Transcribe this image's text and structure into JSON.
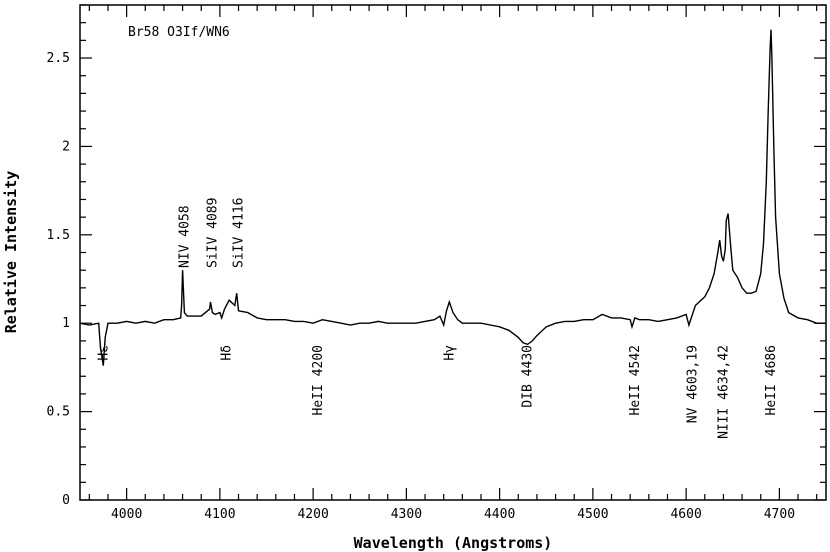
{
  "chart_data": {
    "type": "line",
    "title": "Br58 O3If/WN6",
    "xlabel": "Wavelength (Angstroms)",
    "ylabel": "Relative Intensity",
    "xlim": [
      3950,
      4750
    ],
    "ylim": [
      0,
      2.8
    ],
    "xticks": [
      "4000",
      "4100",
      "4200",
      "4300",
      "4400",
      "4500",
      "4600",
      "4700"
    ],
    "yticks": [
      "0",
      "0.5",
      "1",
      "1.5",
      "2",
      "2.5"
    ],
    "series": [
      {
        "x": [
          3950,
          3960,
          3970,
          3972,
          3975,
          3977,
          3980,
          3990,
          4000,
          4010,
          4020,
          4030,
          4040,
          4050,
          4058,
          4059,
          4060,
          4062,
          4065,
          4070,
          4080,
          4089,
          4090,
          4092,
          4095,
          4100,
          4102,
          4105,
          4110,
          4116,
          4118,
          4120,
          4130,
          4140,
          4150,
          4160,
          4170,
          4180,
          4190,
          4200,
          4210,
          4220,
          4230,
          4240,
          4250,
          4260,
          4270,
          4280,
          4290,
          4300,
          4310,
          4320,
          4330,
          4336,
          4340,
          4343,
          4346,
          4350,
          4355,
          4360,
          4370,
          4380,
          4390,
          4400,
          4410,
          4420,
          4425,
          4430,
          4435,
          4440,
          4450,
          4460,
          4470,
          4480,
          4490,
          4500,
          4510,
          4520,
          4530,
          4540,
          4542,
          4545,
          4550,
          4560,
          4570,
          4580,
          4590,
          4600,
          4603,
          4610,
          4620,
          4625,
          4630,
          4634,
          4636,
          4638,
          4640,
          4642,
          4643,
          4645,
          4648,
          4650,
          4655,
          4660,
          4665,
          4670,
          4675,
          4680,
          4683,
          4686,
          4688,
          4690,
          4691,
          4692,
          4694,
          4696,
          4700,
          4705,
          4710,
          4720,
          4730,
          4740,
          4750
        ],
        "y": [
          1.0,
          0.99,
          1.0,
          0.86,
          0.76,
          0.92,
          1.0,
          1.0,
          1.01,
          1.0,
          1.01,
          1.0,
          1.02,
          1.02,
          1.03,
          1.1,
          1.3,
          1.06,
          1.04,
          1.04,
          1.04,
          1.08,
          1.12,
          1.06,
          1.05,
          1.06,
          1.03,
          1.08,
          1.13,
          1.1,
          1.17,
          1.07,
          1.06,
          1.03,
          1.02,
          1.02,
          1.02,
          1.01,
          1.01,
          1.0,
          1.02,
          1.01,
          1.0,
          0.99,
          1.0,
          1.0,
          1.01,
          1.0,
          1.0,
          1.0,
          1.0,
          1.01,
          1.02,
          1.04,
          0.99,
          1.07,
          1.12,
          1.06,
          1.02,
          1.0,
          1.0,
          1.0,
          0.99,
          0.98,
          0.96,
          0.92,
          0.89,
          0.88,
          0.9,
          0.93,
          0.98,
          1.0,
          1.01,
          1.01,
          1.02,
          1.02,
          1.05,
          1.03,
          1.03,
          1.02,
          0.98,
          1.03,
          1.02,
          1.02,
          1.01,
          1.02,
          1.03,
          1.05,
          0.99,
          1.1,
          1.15,
          1.2,
          1.28,
          1.4,
          1.47,
          1.38,
          1.35,
          1.42,
          1.58,
          1.62,
          1.42,
          1.3,
          1.26,
          1.2,
          1.17,
          1.17,
          1.18,
          1.28,
          1.45,
          1.8,
          2.2,
          2.55,
          2.66,
          2.5,
          2.0,
          1.6,
          1.28,
          1.14,
          1.06,
          1.03,
          1.02,
          1.0,
          1.0
        ]
      }
    ],
    "annotations_above": [
      {
        "x": 4062,
        "text": "NIV 4058"
      },
      {
        "x": 4092,
        "text": "SiIV 4089"
      },
      {
        "x": 4120,
        "text": "SiIV 4116"
      }
    ],
    "annotations_below": [
      {
        "x": 3975,
        "text": "Hε"
      },
      {
        "x": 4107,
        "text": "Hδ"
      },
      {
        "x": 4205,
        "text": "HeII 4200"
      },
      {
        "x": 4346,
        "text": "Hγ"
      },
      {
        "x": 4430,
        "text": "DIB 4430"
      },
      {
        "x": 4545,
        "text": "HeII 4542"
      },
      {
        "x": 4607,
        "text": "NV 4603,19"
      },
      {
        "x": 4640,
        "text": "NIII 4634,42"
      },
      {
        "x": 4691,
        "text": "HeII 4686"
      }
    ]
  }
}
